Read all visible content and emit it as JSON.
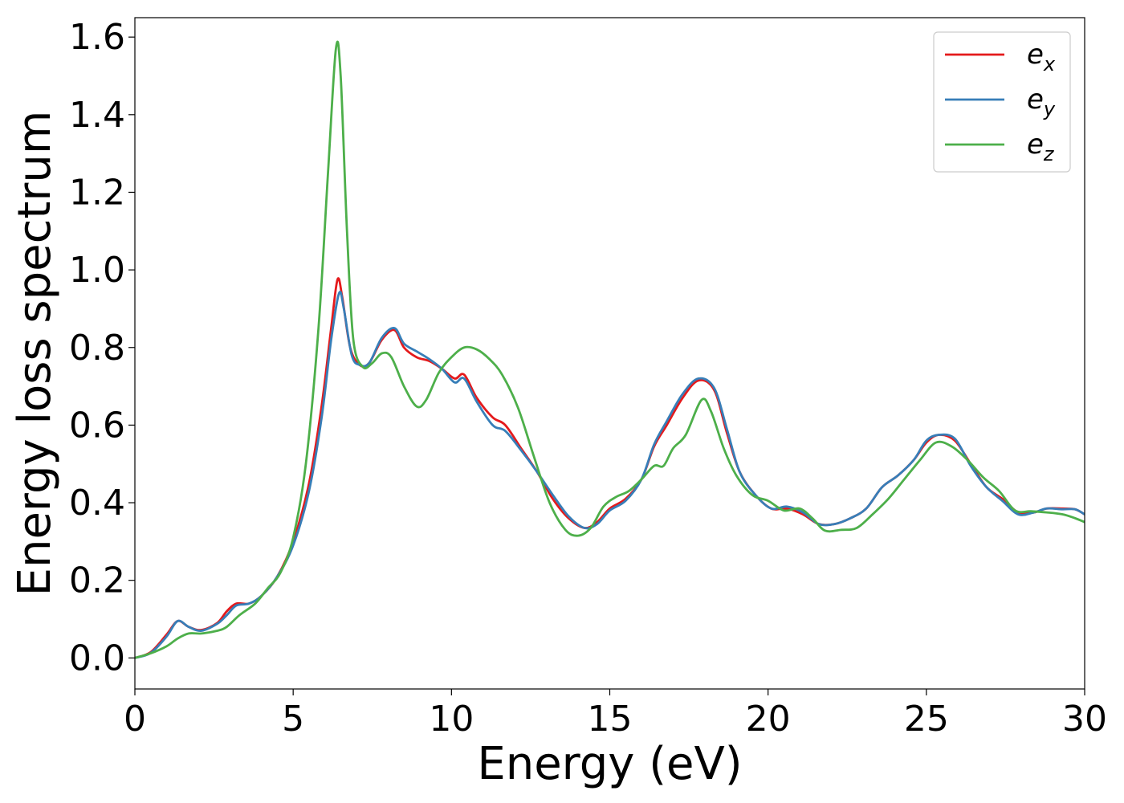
{
  "chart_data": {
    "type": "line",
    "xlabel": "Energy (eV)",
    "ylabel": "Energy loss spectrum",
    "xlim": [
      0,
      30
    ],
    "ylim": [
      -0.08,
      1.65
    ],
    "x_ticks": [
      "0",
      "5",
      "10",
      "15",
      "20",
      "25",
      "30"
    ],
    "y_ticks": [
      "0.0",
      "0.2",
      "0.4",
      "0.6",
      "0.8",
      "1.0",
      "1.2",
      "1.4",
      "1.6"
    ],
    "grid": false,
    "legend_position": "top-right",
    "series": [
      {
        "name": "e_x",
        "base": "e",
        "sub": "x",
        "color": "#e41a1c",
        "points": [
          [
            0,
            0.0
          ],
          [
            0.5,
            0.015
          ],
          [
            1.0,
            0.06
          ],
          [
            1.35,
            0.095
          ],
          [
            1.7,
            0.08
          ],
          [
            2.1,
            0.072
          ],
          [
            2.6,
            0.09
          ],
          [
            2.9,
            0.12
          ],
          [
            3.2,
            0.14
          ],
          [
            3.6,
            0.14
          ],
          [
            4.0,
            0.16
          ],
          [
            4.5,
            0.21
          ],
          [
            5.0,
            0.3
          ],
          [
            5.5,
            0.45
          ],
          [
            5.9,
            0.65
          ],
          [
            6.2,
            0.85
          ],
          [
            6.4,
            0.975
          ],
          [
            6.55,
            0.93
          ],
          [
            6.8,
            0.8
          ],
          [
            7.1,
            0.755
          ],
          [
            7.4,
            0.76
          ],
          [
            7.8,
            0.82
          ],
          [
            8.2,
            0.845
          ],
          [
            8.5,
            0.8
          ],
          [
            8.9,
            0.775
          ],
          [
            9.3,
            0.765
          ],
          [
            9.7,
            0.745
          ],
          [
            10.1,
            0.72
          ],
          [
            10.4,
            0.73
          ],
          [
            10.8,
            0.67
          ],
          [
            11.3,
            0.62
          ],
          [
            11.7,
            0.6
          ],
          [
            12.2,
            0.54
          ],
          [
            12.7,
            0.48
          ],
          [
            13.2,
            0.41
          ],
          [
            13.7,
            0.36
          ],
          [
            14.2,
            0.335
          ],
          [
            14.6,
            0.35
          ],
          [
            15.0,
            0.385
          ],
          [
            15.5,
            0.41
          ],
          [
            16.0,
            0.46
          ],
          [
            16.4,
            0.545
          ],
          [
            16.8,
            0.6
          ],
          [
            17.3,
            0.67
          ],
          [
            17.8,
            0.715
          ],
          [
            18.3,
            0.69
          ],
          [
            18.7,
            0.58
          ],
          [
            19.1,
            0.48
          ],
          [
            19.6,
            0.42
          ],
          [
            20.1,
            0.385
          ],
          [
            20.6,
            0.385
          ],
          [
            21.1,
            0.37
          ],
          [
            21.6,
            0.345
          ],
          [
            22.1,
            0.345
          ],
          [
            22.6,
            0.36
          ],
          [
            23.1,
            0.385
          ],
          [
            23.6,
            0.44
          ],
          [
            24.1,
            0.47
          ],
          [
            24.6,
            0.51
          ],
          [
            25.0,
            0.555
          ],
          [
            25.4,
            0.575
          ],
          [
            25.9,
            0.56
          ],
          [
            26.4,
            0.5
          ],
          [
            26.9,
            0.44
          ],
          [
            27.4,
            0.41
          ],
          [
            27.9,
            0.375
          ],
          [
            28.4,
            0.375
          ],
          [
            28.8,
            0.385
          ],
          [
            29.3,
            0.385
          ],
          [
            29.7,
            0.383
          ],
          [
            30.0,
            0.37
          ]
        ]
      },
      {
        "name": "e_y",
        "base": "e",
        "sub": "y",
        "color": "#377eb8",
        "points": [
          [
            0,
            0.0
          ],
          [
            0.5,
            0.013
          ],
          [
            1.0,
            0.055
          ],
          [
            1.35,
            0.095
          ],
          [
            1.7,
            0.08
          ],
          [
            2.1,
            0.07
          ],
          [
            2.6,
            0.088
          ],
          [
            2.9,
            0.11
          ],
          [
            3.2,
            0.135
          ],
          [
            3.6,
            0.14
          ],
          [
            4.0,
            0.16
          ],
          [
            4.5,
            0.21
          ],
          [
            5.0,
            0.29
          ],
          [
            5.5,
            0.43
          ],
          [
            5.9,
            0.62
          ],
          [
            6.2,
            0.82
          ],
          [
            6.45,
            0.94
          ],
          [
            6.6,
            0.9
          ],
          [
            6.85,
            0.78
          ],
          [
            7.1,
            0.755
          ],
          [
            7.4,
            0.76
          ],
          [
            7.8,
            0.825
          ],
          [
            8.2,
            0.85
          ],
          [
            8.5,
            0.81
          ],
          [
            8.9,
            0.79
          ],
          [
            9.3,
            0.77
          ],
          [
            9.7,
            0.745
          ],
          [
            10.1,
            0.71
          ],
          [
            10.4,
            0.72
          ],
          [
            10.8,
            0.66
          ],
          [
            11.3,
            0.6
          ],
          [
            11.7,
            0.585
          ],
          [
            12.2,
            0.535
          ],
          [
            12.7,
            0.48
          ],
          [
            13.2,
            0.42
          ],
          [
            13.7,
            0.365
          ],
          [
            14.2,
            0.335
          ],
          [
            14.6,
            0.345
          ],
          [
            15.0,
            0.38
          ],
          [
            15.5,
            0.405
          ],
          [
            16.0,
            0.46
          ],
          [
            16.4,
            0.55
          ],
          [
            16.8,
            0.61
          ],
          [
            17.3,
            0.68
          ],
          [
            17.8,
            0.72
          ],
          [
            18.3,
            0.695
          ],
          [
            18.7,
            0.59
          ],
          [
            19.1,
            0.48
          ],
          [
            19.6,
            0.42
          ],
          [
            20.1,
            0.385
          ],
          [
            20.6,
            0.39
          ],
          [
            21.1,
            0.375
          ],
          [
            21.6,
            0.345
          ],
          [
            22.1,
            0.345
          ],
          [
            22.6,
            0.36
          ],
          [
            23.1,
            0.385
          ],
          [
            23.6,
            0.44
          ],
          [
            24.1,
            0.47
          ],
          [
            24.6,
            0.51
          ],
          [
            25.0,
            0.56
          ],
          [
            25.4,
            0.575
          ],
          [
            25.9,
            0.565
          ],
          [
            26.4,
            0.495
          ],
          [
            26.9,
            0.44
          ],
          [
            27.4,
            0.405
          ],
          [
            27.9,
            0.37
          ],
          [
            28.4,
            0.375
          ],
          [
            28.8,
            0.385
          ],
          [
            29.3,
            0.383
          ],
          [
            29.7,
            0.383
          ],
          [
            30.0,
            0.37
          ]
        ]
      },
      {
        "name": "e_z",
        "base": "e",
        "sub": "z",
        "color": "#4daf4a",
        "points": [
          [
            0,
            0.0
          ],
          [
            0.5,
            0.012
          ],
          [
            1.0,
            0.03
          ],
          [
            1.35,
            0.05
          ],
          [
            1.7,
            0.063
          ],
          [
            2.1,
            0.063
          ],
          [
            2.6,
            0.07
          ],
          [
            2.9,
            0.08
          ],
          [
            3.3,
            0.11
          ],
          [
            3.8,
            0.14
          ],
          [
            4.2,
            0.18
          ],
          [
            4.6,
            0.22
          ],
          [
            5.0,
            0.31
          ],
          [
            5.4,
            0.5
          ],
          [
            5.8,
            0.85
          ],
          [
            6.1,
            1.25
          ],
          [
            6.35,
            1.57
          ],
          [
            6.5,
            1.5
          ],
          [
            6.7,
            1.1
          ],
          [
            6.9,
            0.82
          ],
          [
            7.2,
            0.75
          ],
          [
            7.5,
            0.76
          ],
          [
            7.8,
            0.785
          ],
          [
            8.1,
            0.775
          ],
          [
            8.5,
            0.7
          ],
          [
            8.9,
            0.648
          ],
          [
            9.2,
            0.665
          ],
          [
            9.6,
            0.735
          ],
          [
            10.0,
            0.775
          ],
          [
            10.4,
            0.8
          ],
          [
            10.8,
            0.795
          ],
          [
            11.2,
            0.77
          ],
          [
            11.6,
            0.73
          ],
          [
            12.1,
            0.645
          ],
          [
            12.6,
            0.52
          ],
          [
            13.1,
            0.4
          ],
          [
            13.6,
            0.33
          ],
          [
            14.0,
            0.315
          ],
          [
            14.4,
            0.335
          ],
          [
            14.8,
            0.39
          ],
          [
            15.2,
            0.415
          ],
          [
            15.6,
            0.43
          ],
          [
            16.0,
            0.46
          ],
          [
            16.4,
            0.495
          ],
          [
            16.7,
            0.495
          ],
          [
            17.0,
            0.54
          ],
          [
            17.4,
            0.575
          ],
          [
            17.9,
            0.665
          ],
          [
            18.2,
            0.635
          ],
          [
            18.6,
            0.54
          ],
          [
            19.0,
            0.47
          ],
          [
            19.5,
            0.42
          ],
          [
            20.0,
            0.405
          ],
          [
            20.5,
            0.38
          ],
          [
            21.0,
            0.385
          ],
          [
            21.4,
            0.36
          ],
          [
            21.8,
            0.328
          ],
          [
            22.3,
            0.33
          ],
          [
            22.8,
            0.335
          ],
          [
            23.3,
            0.37
          ],
          [
            23.8,
            0.41
          ],
          [
            24.3,
            0.46
          ],
          [
            24.8,
            0.51
          ],
          [
            25.3,
            0.555
          ],
          [
            25.8,
            0.545
          ],
          [
            26.3,
            0.51
          ],
          [
            26.8,
            0.465
          ],
          [
            27.3,
            0.43
          ],
          [
            27.8,
            0.38
          ],
          [
            28.3,
            0.378
          ],
          [
            28.8,
            0.375
          ],
          [
            29.3,
            0.37
          ],
          [
            29.7,
            0.36
          ],
          [
            30.0,
            0.35
          ]
        ]
      }
    ]
  }
}
